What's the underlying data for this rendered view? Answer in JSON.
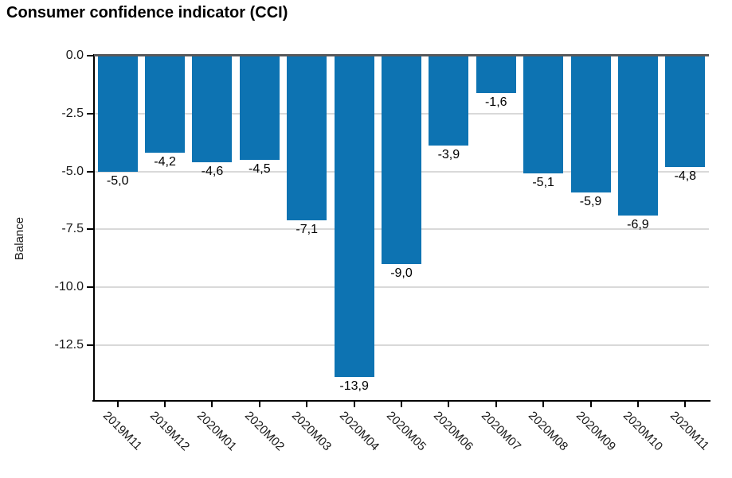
{
  "title": "Consumer confidence indicator (CCI)",
  "chart_data": {
    "type": "bar",
    "title": "Consumer confidence indicator (CCI)",
    "xlabel": "",
    "ylabel": "Balance",
    "categories": [
      "2019M11",
      "2019M12",
      "2020M01",
      "2020M02",
      "2020M03",
      "2020M04",
      "2020M05",
      "2020M06",
      "2020M07",
      "2020M08",
      "2020M09",
      "2020M10",
      "2020M11"
    ],
    "values": [
      -5.0,
      -4.2,
      -4.6,
      -4.5,
      -7.1,
      -13.9,
      -9.0,
      -3.9,
      -1.6,
      -5.1,
      -5.9,
      -6.9,
      -4.8
    ],
    "value_labels": [
      "-5,0",
      "-4,2",
      "-4,6",
      "-4,5",
      "-7,1",
      "-13,9",
      "-9,0",
      "-3,9",
      "-1,6",
      "-5,1",
      "-5,9",
      "-6,9",
      "-4,8"
    ],
    "ylim": [
      -15,
      0
    ],
    "ytick_labels": [
      "0.0",
      "-2.5",
      "-5.0",
      "-7.5",
      "-10.0",
      "-12.5"
    ],
    "ytick_values": [
      0,
      -2.5,
      -5.0,
      -7.5,
      -10.0,
      -12.5
    ],
    "grid": true,
    "legend": "none",
    "colors": {
      "bar": "#0d73b2",
      "zero_line": "#58595b",
      "gridline": "#d9d9d9",
      "axis": "#000000",
      "text": "#000000"
    }
  }
}
